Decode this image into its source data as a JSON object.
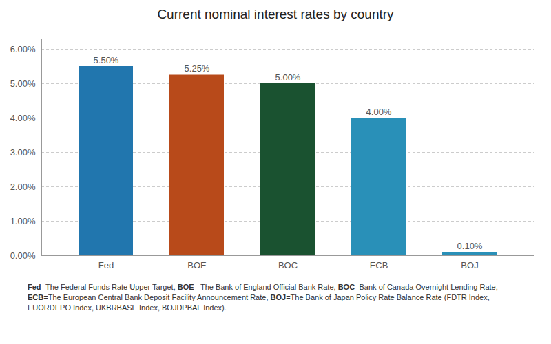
{
  "chart_data": {
    "type": "bar",
    "title": "Current nominal interest rates by country",
    "categories": [
      "Fed",
      "BOE",
      "BOC",
      "ECB",
      "BOJ"
    ],
    "values": [
      5.5,
      5.25,
      5.0,
      4.0,
      0.1
    ],
    "value_labels": [
      "5.50%",
      "5.25%",
      "5.00%",
      "4.00%",
      "0.10%"
    ],
    "data_labels": true,
    "colors": [
      "#2176AE",
      "#B84A1A",
      "#1A5230",
      "#2990B8",
      "#2990B8"
    ],
    "ylim": [
      0,
      6.3
    ],
    "yticks": [
      {
        "value": 0.0,
        "label": "0.00%"
      },
      {
        "value": 1.0,
        "label": "1.00%"
      },
      {
        "value": 2.0,
        "label": "2.00%"
      },
      {
        "value": 3.0,
        "label": "3.00%"
      },
      {
        "value": 4.0,
        "label": "4.00%"
      },
      {
        "value": 5.0,
        "label": "5.00%"
      },
      {
        "value": 6.0,
        "label": "6.00%"
      }
    ],
    "grid": true,
    "annotations": [
      "Fed=The Federal Funds Rate Upper Target, BOE= The Bank of England Official Bank Rate, BOC=Bank of Canada Overnight Lending Rate,",
      "ECB=The European Central Bank Deposit Facility Announcement Rate, BOJ=The Bank of Japan Policy Rate Balance Rate (FDTR Index,",
      "EUORDEPO Index, UKBRBASE Index, BOJDPBAL Index)."
    ]
  }
}
